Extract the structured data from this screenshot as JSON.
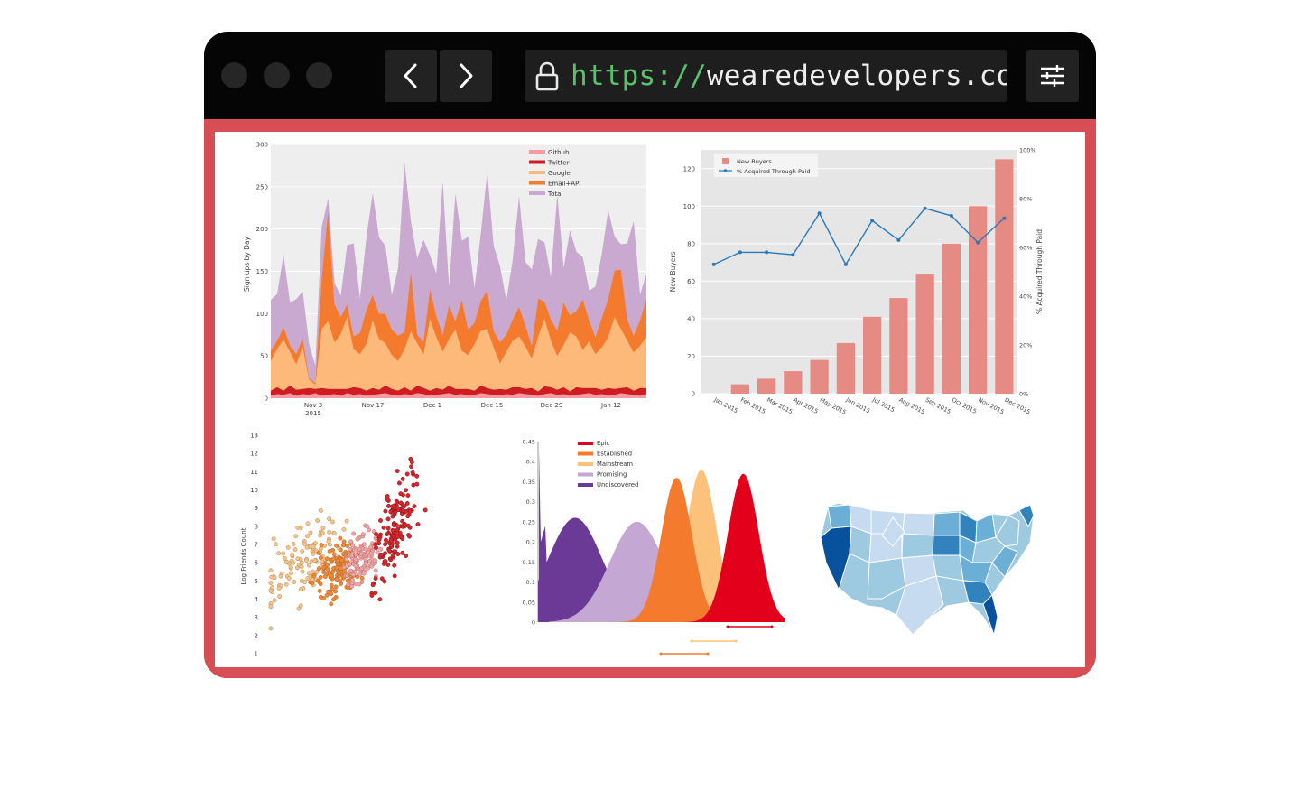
{
  "browser": {
    "url_protocol": "https://",
    "url_host": "wearedevelopers.com/i",
    "icons": {
      "back": "chevron-left-icon",
      "forward": "chevron-right-icon",
      "lock": "lock-icon",
      "settings": "sliders-icon"
    }
  },
  "colors": {
    "frame": "#050505",
    "accent": "#d74f54",
    "url_protocol": "#58c36b",
    "button_bg": "#222222"
  },
  "chart_data": [
    {
      "type": "area",
      "ylabel": "Sign ups by Day",
      "ylim": [
        0,
        300
      ],
      "y_ticks": [
        "300",
        "250",
        "200",
        "150",
        "100",
        "50",
        "0"
      ],
      "x_ticks": [
        {
          "label": "Nov 3",
          "sub": "2015"
        },
        {
          "label": "Nov 17",
          "sub": ""
        },
        {
          "label": "Dec 1",
          "sub": ""
        },
        {
          "label": "Dec 15",
          "sub": ""
        },
        {
          "label": "Dec 29",
          "sub": ""
        },
        {
          "label": "Jan 12",
          "sub": ""
        }
      ],
      "legend": [
        "Github",
        "Twitter",
        "Google",
        "Email+API",
        "Total"
      ],
      "series": [
        {
          "name": "Github",
          "color": "#f59aa0",
          "values": [
            3,
            5,
            4,
            6,
            3,
            5,
            4,
            6,
            3,
            4,
            5,
            3,
            6,
            4,
            5,
            3,
            4,
            5,
            6,
            4,
            3,
            5,
            4,
            6,
            5,
            3,
            4,
            5,
            6,
            4,
            5,
            3,
            4,
            6,
            5,
            4,
            3,
            5,
            4,
            6,
            5,
            4,
            3,
            5,
            6,
            4,
            5,
            3,
            4,
            5,
            6,
            4,
            5,
            3,
            4,
            6,
            5,
            4,
            3,
            5
          ]
        },
        {
          "name": "Twitter",
          "color": "#cf1b22",
          "values": [
            6,
            8,
            5,
            9,
            7,
            6,
            8,
            5,
            9,
            7,
            6,
            8,
            5,
            9,
            7,
            6,
            8,
            5,
            9,
            7,
            6,
            8,
            5,
            9,
            7,
            6,
            8,
            5,
            9,
            7,
            6,
            8,
            5,
            9,
            7,
            6,
            8,
            5,
            9,
            7,
            6,
            8,
            5,
            9,
            7,
            6,
            8,
            5,
            9,
            7,
            6,
            8,
            5,
            9,
            7,
            6,
            8,
            5,
            9,
            7
          ]
        },
        {
          "name": "Google",
          "color": "#fdb97a",
          "values": [
            35,
            45,
            60,
            40,
            30,
            50,
            10,
            5,
            70,
            80,
            55,
            65,
            85,
            45,
            40,
            55,
            80,
            60,
            50,
            40,
            35,
            45,
            70,
            50,
            40,
            85,
            60,
            45,
            55,
            70,
            45,
            40,
            55,
            65,
            70,
            50,
            30,
            45,
            55,
            60,
            50,
            35,
            65,
            80,
            55,
            40,
            50,
            70,
            60,
            45,
            55,
            40,
            50,
            60,
            85,
            70,
            55,
            45,
            50,
            60
          ]
        },
        {
          "name": "Email+API",
          "color": "#f47b2e",
          "values": [
            12,
            10,
            15,
            8,
            12,
            10,
            2,
            2,
            60,
            130,
            45,
            20,
            15,
            15,
            25,
            40,
            30,
            30,
            35,
            30,
            30,
            20,
            70,
            10,
            15,
            35,
            25,
            20,
            40,
            10,
            60,
            30,
            25,
            35,
            45,
            20,
            25,
            20,
            25,
            35,
            25,
            15,
            45,
            20,
            25,
            30,
            50,
            20,
            30,
            60,
            25,
            20,
            35,
            45,
            55,
            70,
            25,
            20,
            30,
            45
          ]
        },
        {
          "name": "Total",
          "color": "#c9a9d0",
          "values": [
            60,
            55,
            85,
            50,
            65,
            55,
            40,
            20,
            60,
            15,
            25,
            25,
            70,
            110,
            40,
            85,
            120,
            90,
            80,
            40,
            80,
            200,
            60,
            90,
            120,
            40,
            50,
            180,
            20,
            150,
            70,
            110,
            40,
            80,
            140,
            100,
            90,
            40,
            70,
            130,
            75,
            90,
            70,
            70,
            50,
            160,
            40,
            100,
            70,
            50,
            35,
            60,
            75,
            105,
            40,
            30,
            90,
            135,
            30,
            30
          ]
        }
      ]
    },
    {
      "type": "bar",
      "ylabel": "New Buyers",
      "y2label": "% Acquired Through Paid",
      "ylim": [
        0,
        130
      ],
      "y2lim": [
        0,
        100
      ],
      "y_ticks": [
        "120",
        "100",
        "80",
        "60",
        "40",
        "20",
        "0"
      ],
      "y2_ticks": [
        "100%",
        "80%",
        "60%",
        "40%",
        "20%",
        "0%"
      ],
      "categories": [
        "Jan 2015",
        "Feb 2015",
        "Mar 2015",
        "Apr 2015",
        "May 2015",
        "Jun 2015",
        "Jul 2015",
        "Aug 2015",
        "Sep 2015",
        "Oct 2015",
        "Nov 2015",
        "Dec 2015"
      ],
      "series": [
        {
          "name": "New Buyers",
          "type": "bar",
          "color": "#e68b84",
          "values": [
            0,
            5,
            8,
            12,
            18,
            27,
            41,
            51,
            64,
            80,
            100,
            125
          ]
        },
        {
          "name": "% Acquired Through Paid",
          "type": "line",
          "color": "#2a7ab8",
          "values": [
            53,
            58,
            58,
            57,
            74,
            53,
            71,
            63,
            76,
            73,
            62,
            72
          ]
        }
      ]
    },
    {
      "type": "scatter",
      "ylabel": "Log Friends Count",
      "ylim": [
        1,
        13
      ],
      "y_ticks": [
        "13",
        "12",
        "11",
        "10",
        "9",
        "8",
        "7",
        "6",
        "5",
        "4",
        "3",
        "2",
        "1"
      ]
    },
    {
      "type": "area",
      "ylim": [
        0,
        0.45
      ],
      "y_ticks": [
        "0.45",
        "0.4",
        "0.35",
        "0.3",
        "0.25",
        "0.2",
        "0.15",
        "0.1",
        "0.05",
        "0"
      ],
      "legend": [
        "Epic",
        "Established",
        "Mainstream",
        "Promising",
        "Undiscovered"
      ],
      "series": [
        {
          "name": "Undiscovered",
          "color": "#6a3a96",
          "peak": 0.26,
          "center": 0.15
        },
        {
          "name": "Promising",
          "color": "#c4a7d3",
          "peak": 0.25,
          "center": 0.4
        },
        {
          "name": "Mainstream",
          "color": "#fcc27c",
          "peak": 0.38,
          "center": 0.66
        },
        {
          "name": "Established",
          "color": "#f47b2e",
          "peak": 0.36,
          "center": 0.56
        },
        {
          "name": "Epic",
          "color": "#e3001b",
          "peak": 0.37,
          "center": 0.83
        }
      ]
    },
    {
      "type": "choropleth",
      "colors": [
        "#c6dbef",
        "#9ecae1",
        "#6baed6",
        "#3182bd",
        "#08519c"
      ]
    }
  ]
}
